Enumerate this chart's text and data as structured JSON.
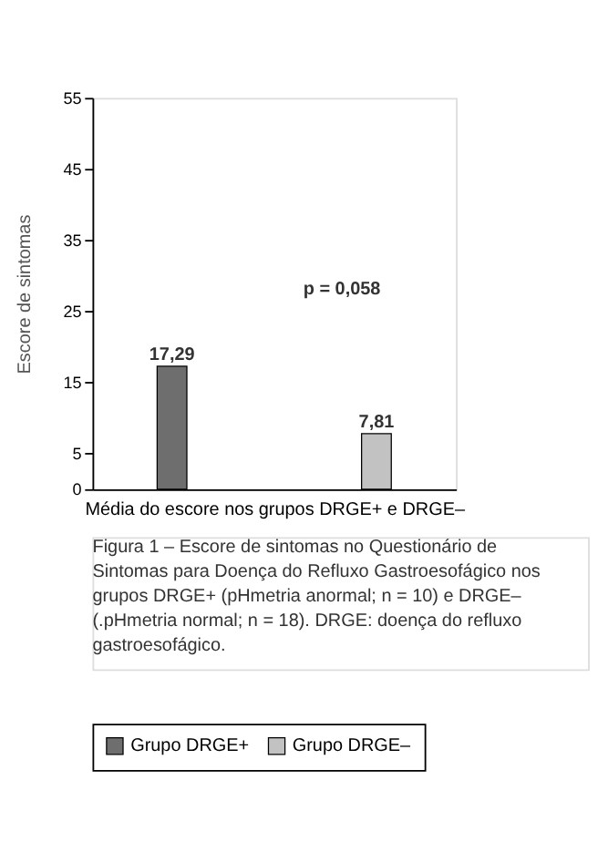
{
  "chart_data": {
    "type": "bar",
    "xlabel": "Média do escore nos grupos DRGE+ e DRGE–",
    "ylabel": "Escore de sintomas",
    "categories": [
      null
    ],
    "series": [
      {
        "name": "Grupo DRGE+",
        "color": "#6e6e6e",
        "values": [
          17.29
        ],
        "value_labels": [
          "17,29"
        ]
      },
      {
        "name": "Grupo DRGE–",
        "color": "#c2c2c2",
        "values": [
          7.81
        ],
        "value_labels": [
          "7,81"
        ]
      }
    ],
    "ylim": [
      0,
      55
    ],
    "yticks": [
      0,
      5,
      15,
      25,
      35,
      45,
      55
    ],
    "legend": "bottom",
    "annotations": [
      "p = 0,058",
      "Figura 1 – Escore de sintomas no Questionário de Sintomas para Doença do Refluxo Gastroesofágico nos grupos DRGE+ (pHmetria anormal; n = 10) e DRGE– (.pHmetria normal; n = 18). DRGE: doença do refluxo gastroesofágico."
    ]
  }
}
